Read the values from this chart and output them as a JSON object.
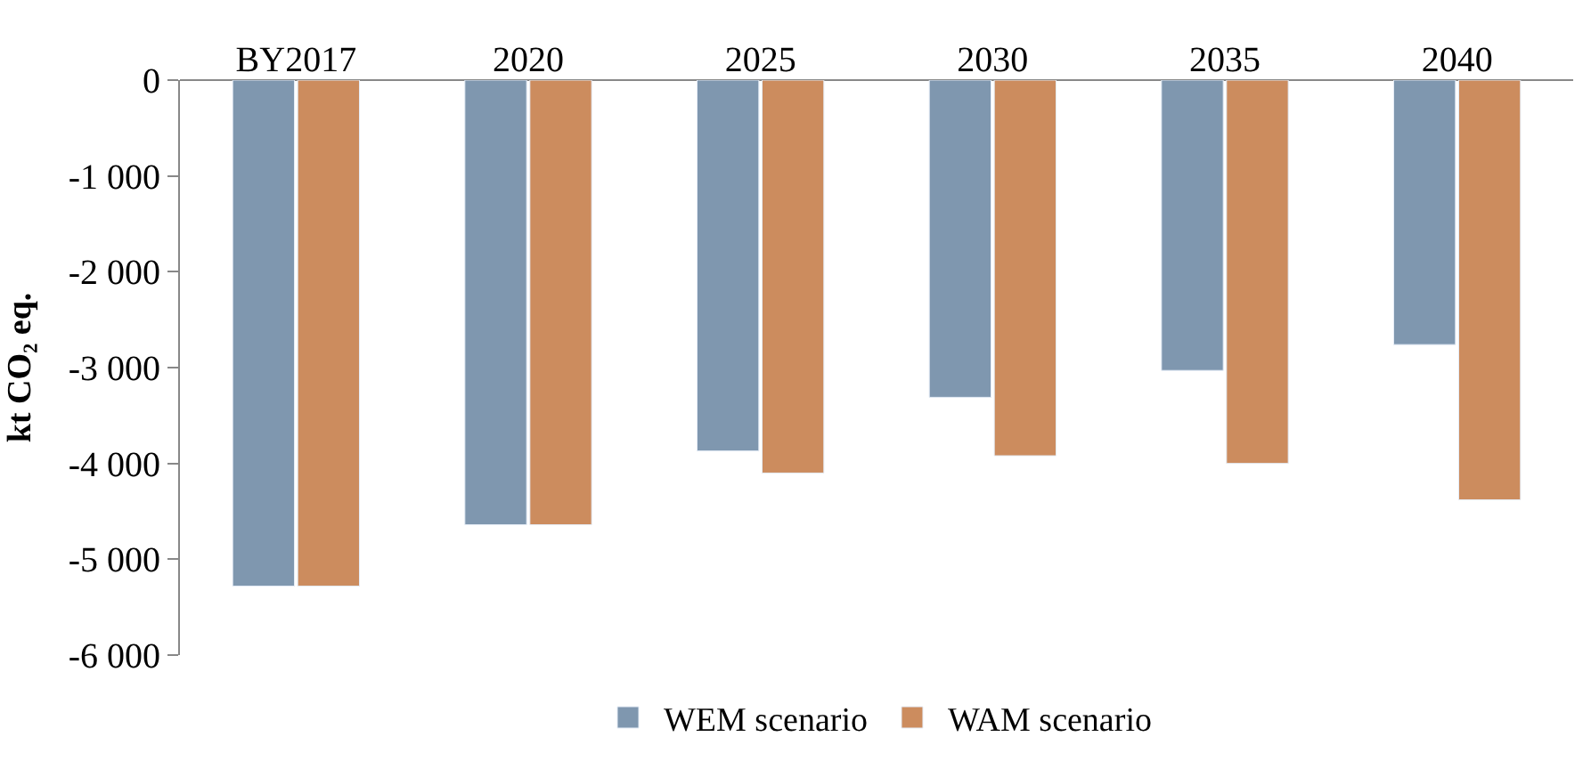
{
  "chart_data": {
    "type": "bar",
    "ylabel": "kt CO₂ eq.",
    "categories": [
      "BY2017",
      "2020",
      "2025",
      "2030",
      "2035",
      "2040"
    ],
    "series": [
      {
        "name": "WEM scenario",
        "color": "#7f97af",
        "values": [
          -5280,
          -4640,
          -3870,
          -3310,
          -3030,
          -2760
        ]
      },
      {
        "name": "WAM scenario",
        "color": "#cc8c5e",
        "values": [
          -5280,
          -4640,
          -4100,
          -3920,
          -4000,
          -4380
        ]
      }
    ],
    "ylim": [
      -6000,
      0
    ],
    "yticks": [
      0,
      {
        "value": -1000,
        "label": "-1 000"
      },
      {
        "value": -2000,
        "label": "-2 000"
      },
      {
        "value": -3000,
        "label": "-3 000"
      },
      {
        "value": -4000,
        "label": "-4 000"
      },
      {
        "value": -5000,
        "label": "-5 000"
      },
      {
        "value": -6000,
        "label": "-6 000"
      }
    ],
    "legend": "bottom"
  }
}
